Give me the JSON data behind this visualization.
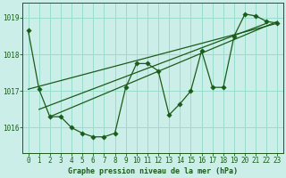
{
  "title": "Graphe pression niveau de la mer (hPa)",
  "bg_color": "#cceee8",
  "grid_color": "#99ddcc",
  "line_color": "#1a5c1a",
  "spine_color": "#1a5c1a",
  "yticks": [
    1016,
    1017,
    1018,
    1019
  ],
  "ylim": [
    1015.3,
    1019.4
  ],
  "xlim": [
    -0.5,
    23.5
  ],
  "xticks": [
    0,
    1,
    2,
    3,
    4,
    5,
    6,
    7,
    8,
    9,
    10,
    11,
    12,
    13,
    14,
    15,
    16,
    17,
    18,
    19,
    20,
    21,
    22,
    23
  ],
  "series_main": [
    1018.65,
    1017.05,
    1016.3,
    1016.3,
    1016.0,
    1015.85,
    1015.75,
    1015.75,
    1015.85,
    1017.1,
    1017.75,
    1017.75,
    1017.55,
    1016.35,
    1016.65,
    1017.0,
    1018.1,
    1017.1,
    1017.1,
    1018.5,
    1019.1,
    1019.05,
    1018.9,
    1018.85
  ],
  "trend_line1_x": [
    0,
    23
  ],
  "trend_line1_y": [
    1017.05,
    1018.85
  ],
  "trend_line2_x": [
    1,
    22
  ],
  "trend_line2_y": [
    1016.5,
    1018.85
  ],
  "trend_line3_x": [
    2,
    23
  ],
  "trend_line3_y": [
    1016.3,
    1018.9
  ],
  "marker_size": 2.8,
  "line_width": 0.9,
  "tick_fontsize": 5.5,
  "xlabel_fontsize": 6.0
}
